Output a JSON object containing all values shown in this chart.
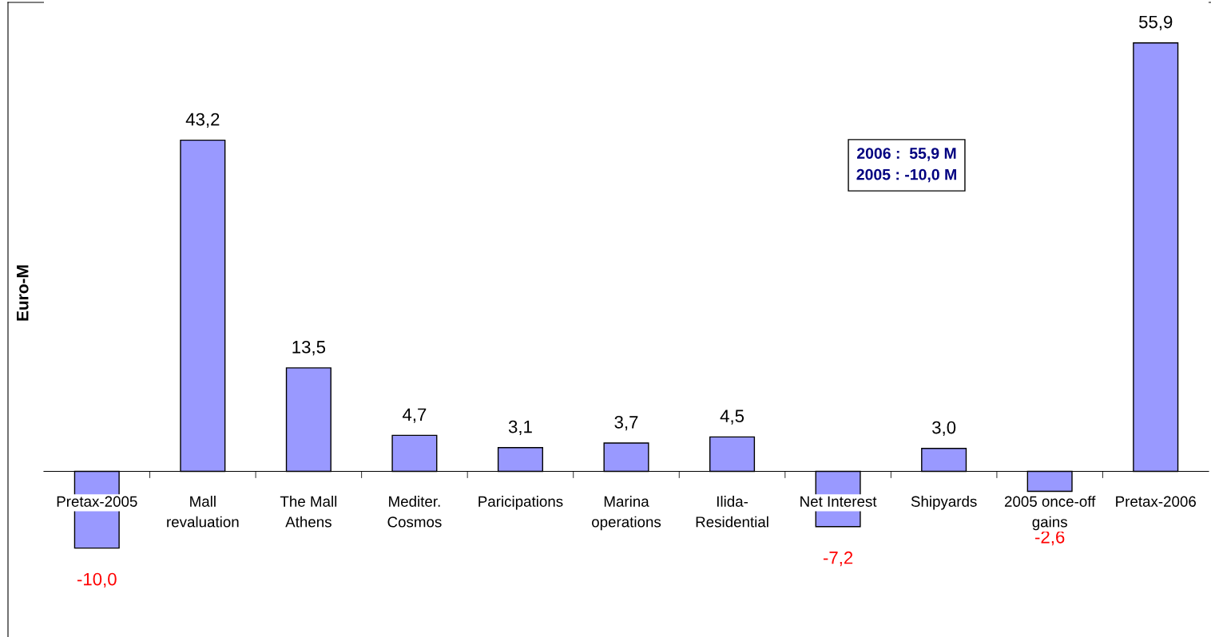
{
  "chart_data": {
    "type": "bar",
    "ylabel": "Euro-M",
    "categories": [
      "Pretax-2005",
      "Mall\nrevaluation",
      "The Mall\nAthens",
      "Mediter.\nCosmos",
      "Paricipations",
      "Marina\noperations",
      "Ilida-\nResidential",
      "Net Interest",
      "Shipyards",
      "2005 once-off\ngains",
      "Pretax-2006"
    ],
    "values": [
      -10.0,
      43.2,
      13.5,
      4.7,
      3.1,
      3.7,
      4.5,
      -7.2,
      3.0,
      -2.6,
      55.9
    ],
    "value_labels": [
      "-10,0",
      "43,2",
      "13,5",
      "4,7",
      "3,1",
      "3,7",
      "4,5",
      "-7,2",
      "3,0",
      "-2,6",
      "55,9"
    ],
    "color": "#9999ff",
    "annotations": [
      "2006 :  55,9 M\n2005 : -10,0 M"
    ],
    "grid": false,
    "legend": false
  }
}
